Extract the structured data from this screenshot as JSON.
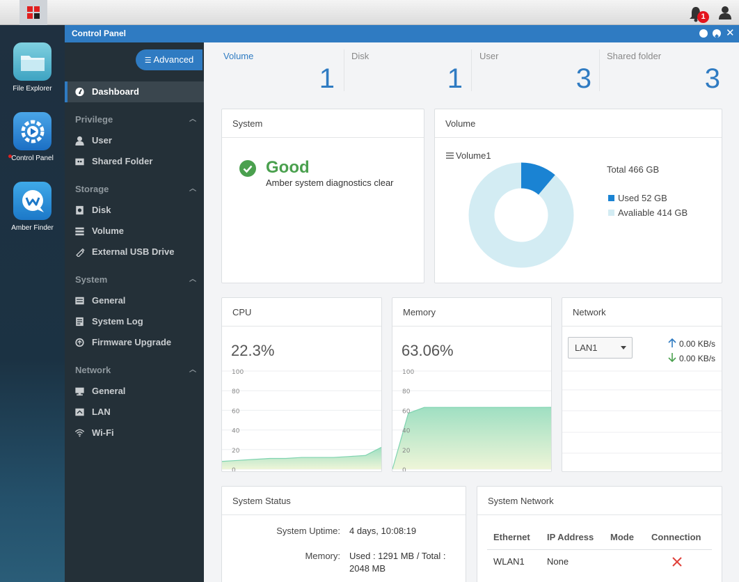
{
  "desktop": {
    "apps": [
      {
        "label": "File Explorer",
        "icon": "folder-icon"
      },
      {
        "label": "Control Panel",
        "icon": "control-panel-icon"
      },
      {
        "label": "Amber Finder",
        "icon": "amber-finder-icon"
      }
    ],
    "notification_count": "1"
  },
  "window": {
    "title": "Control Panel"
  },
  "sidebar": {
    "advanced_label": "Advanced",
    "dashboard_label": "Dashboard",
    "groups": [
      {
        "label": "Privilege",
        "items": [
          "User",
          "Shared Folder"
        ]
      },
      {
        "label": "Storage",
        "items": [
          "Disk",
          "Volume",
          "External USB Drive"
        ]
      },
      {
        "label": "System",
        "items": [
          "General",
          "System Log",
          "Firmware Upgrade"
        ]
      },
      {
        "label": "Network",
        "items": [
          "General",
          "LAN",
          "Wi-Fi"
        ]
      }
    ]
  },
  "stats": [
    {
      "label": "Volume",
      "value": "1"
    },
    {
      "label": "Disk",
      "value": "1"
    },
    {
      "label": "User",
      "value": "3"
    },
    {
      "label": "Shared folder",
      "value": "3"
    }
  ],
  "system_card": {
    "title": "System",
    "status": "Good",
    "message": "Amber system diagnostics clear"
  },
  "volume_card": {
    "title": "Volume",
    "volume_name": "Volume1",
    "total": "Total 466 GB",
    "used": "Used 52 GB",
    "available": "Avaliable 414 GB",
    "used_gb": 52,
    "total_gb": 466,
    "used_color": "#1a83d3",
    "available_color": "#d3ecf3"
  },
  "cpu_card": {
    "title": "CPU",
    "value": "22.3%",
    "y_ticks": [
      "100",
      "80",
      "60",
      "40",
      "20",
      "0"
    ]
  },
  "memory_card": {
    "title": "Memory",
    "value": "63.06%",
    "y_ticks": [
      "100",
      "80",
      "60",
      "40",
      "20",
      "0"
    ]
  },
  "network_card": {
    "title": "Network",
    "selected_interface": "LAN1",
    "upload": "0.00 KB/s",
    "download": "0.00 KB/s"
  },
  "system_status": {
    "title": "System Status",
    "uptime_label": "System Uptime:",
    "uptime_value": "4 days, 10:08:19",
    "memory_label": "Memory:",
    "memory_value_line1": "Used : 1291 MB / Total :",
    "memory_value_line2": "2048 MB"
  },
  "system_network": {
    "title": "System Network",
    "columns": [
      "Ethernet",
      "IP Address",
      "Mode",
      "Connection"
    ],
    "rows": [
      {
        "ethernet": "WLAN1",
        "ip": "None",
        "mode": "",
        "connection": "disconnected"
      }
    ]
  },
  "chart_data": [
    {
      "type": "pie",
      "title": "Volume",
      "categories": [
        "Used",
        "Avaliable"
      ],
      "values": [
        52,
        414
      ]
    },
    {
      "type": "area",
      "title": "CPU",
      "ylim": [
        0,
        100
      ],
      "values": [
        8,
        9,
        10,
        11,
        11,
        12,
        12,
        12,
        13,
        14,
        22.3
      ]
    },
    {
      "type": "area",
      "title": "Memory",
      "ylim": [
        0,
        100
      ],
      "values": [
        0,
        57,
        63,
        63,
        63,
        63,
        63,
        63,
        63,
        63,
        63.06
      ]
    }
  ]
}
